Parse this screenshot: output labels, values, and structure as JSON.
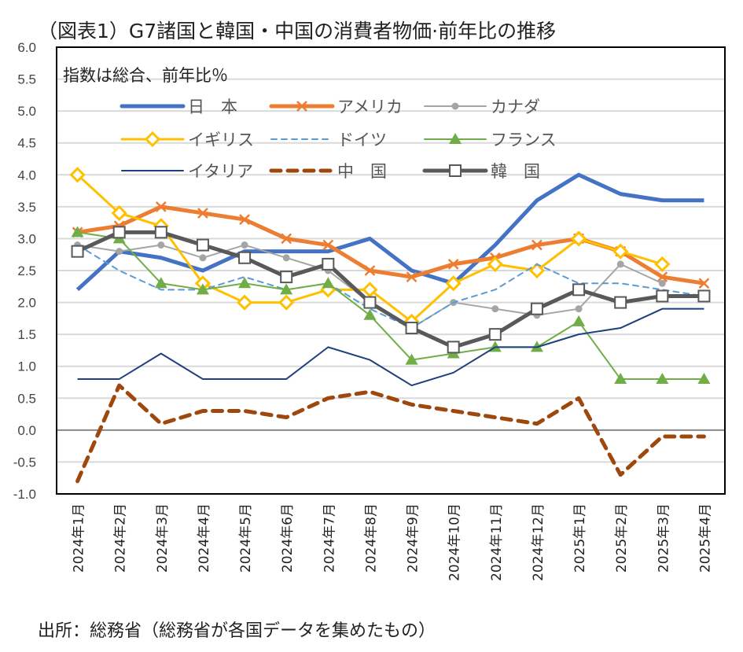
{
  "title": "（図表1）G7諸国と韓国・中国の消費者物価·前年比の推移",
  "source": "出所：総務省（総務省が各国データを集めたもの）",
  "chart_data": {
    "type": "line",
    "title": "（図表1）G7諸国と韓国・中国の消費者物価·前年比の推移",
    "annotation": "指数は総合、前年比％",
    "ylim": [
      -1.0,
      6.0
    ],
    "yticks": [
      "6.0",
      "5.5",
      "5.0",
      "4.5",
      "4.0",
      "3.5",
      "3.0",
      "2.5",
      "2.0",
      "1.5",
      "1.0",
      "0.5",
      "0.0",
      "-0.5",
      "-1.0"
    ],
    "grid": true,
    "legend_position": "top-inside",
    "categories": [
      "2024年1月",
      "2024年2月",
      "2024年3月",
      "2024年4月",
      "2024年5月",
      "2024年6月",
      "2024年7月",
      "2024年8月",
      "2024年9月",
      "2024年10月",
      "2024年11月",
      "2024年12月",
      "2025年1月",
      "2025年2月",
      "2025年3月",
      "2025年4月"
    ],
    "series": [
      {
        "name": "日　本",
        "color": "#4472C4",
        "style": "thick",
        "marker": "none",
        "values": [
          2.2,
          2.8,
          2.7,
          2.5,
          2.8,
          2.8,
          2.8,
          3.0,
          2.5,
          2.3,
          2.9,
          3.6,
          4.0,
          3.7,
          3.6,
          3.6
        ]
      },
      {
        "name": "アメリカ",
        "color": "#ED7D31",
        "style": "thick",
        "marker": "x",
        "values": [
          3.1,
          3.2,
          3.5,
          3.4,
          3.3,
          3.0,
          2.9,
          2.5,
          2.4,
          2.6,
          2.7,
          2.9,
          3.0,
          2.8,
          2.4,
          2.3
        ]
      },
      {
        "name": "カナダ",
        "color": "#A5A5A5",
        "style": "thin",
        "marker": "circle",
        "values": [
          2.9,
          2.8,
          2.9,
          2.7,
          2.9,
          2.7,
          2.5,
          2.0,
          1.6,
          2.0,
          1.9,
          1.8,
          1.9,
          2.6,
          2.3,
          null
        ]
      },
      {
        "name": "イギリス",
        "color": "#FFC000",
        "style": "medium",
        "marker": "diamond",
        "values": [
          4.0,
          3.4,
          3.2,
          2.3,
          2.0,
          2.0,
          2.2,
          2.2,
          1.7,
          2.3,
          2.6,
          2.5,
          3.0,
          2.8,
          2.6,
          null
        ]
      },
      {
        "name": "ドイツ",
        "color": "#5B9BD5",
        "style": "dash",
        "marker": "none",
        "values": [
          2.9,
          2.5,
          2.2,
          2.2,
          2.4,
          2.2,
          2.3,
          1.9,
          1.6,
          2.0,
          2.2,
          2.6,
          2.3,
          2.3,
          2.2,
          2.1
        ]
      },
      {
        "name": "フランス",
        "color": "#70AD47",
        "style": "thin",
        "marker": "triangle",
        "values": [
          3.1,
          3.0,
          2.3,
          2.2,
          2.3,
          2.2,
          2.3,
          1.8,
          1.1,
          1.2,
          1.3,
          1.3,
          1.7,
          0.8,
          0.8,
          0.8
        ]
      },
      {
        "name": "イタリア",
        "color": "#1F3F7F",
        "style": "thin",
        "marker": "none",
        "values": [
          0.8,
          0.8,
          1.2,
          0.8,
          0.8,
          0.8,
          1.3,
          1.1,
          0.7,
          0.9,
          1.3,
          1.3,
          1.5,
          1.6,
          1.9,
          1.9
        ]
      },
      {
        "name": "中　国",
        "color": "#9E480E",
        "style": "bigdash",
        "marker": "none",
        "values": [
          -0.8,
          0.7,
          0.1,
          0.3,
          0.3,
          0.2,
          0.5,
          0.6,
          0.4,
          0.3,
          0.2,
          0.1,
          0.5,
          -0.7,
          -0.1,
          -0.1
        ]
      },
      {
        "name": "韓　国",
        "color": "#595959",
        "style": "thick",
        "marker": "square",
        "values": [
          2.8,
          3.1,
          3.1,
          2.9,
          2.7,
          2.4,
          2.6,
          2.0,
          1.6,
          1.3,
          1.5,
          1.9,
          2.2,
          2.0,
          2.1,
          2.1
        ]
      }
    ]
  }
}
